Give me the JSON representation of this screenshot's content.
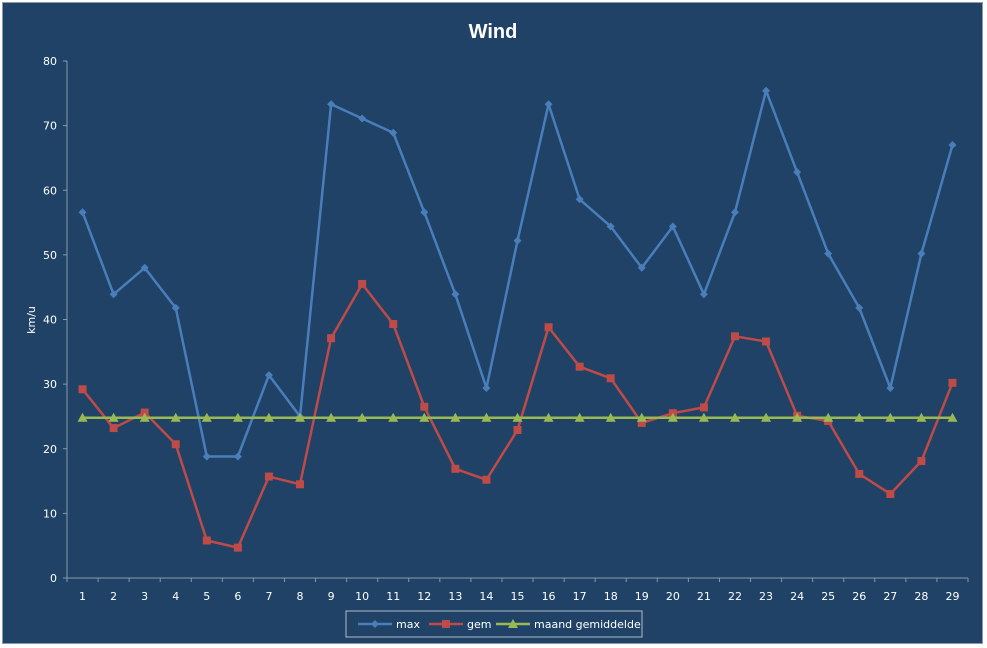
{
  "chart_data": {
    "type": "line",
    "title": "Wind",
    "xlabel": "",
    "ylabel": "km/u",
    "ylim": [
      0,
      80
    ],
    "yticks": [
      0,
      10,
      20,
      30,
      40,
      50,
      60,
      70,
      80
    ],
    "categories": [
      "1",
      "2",
      "3",
      "4",
      "5",
      "6",
      "7",
      "8",
      "9",
      "10",
      "11",
      "12",
      "13",
      "14",
      "15",
      "16",
      "17",
      "18",
      "19",
      "20",
      "21",
      "22",
      "23",
      "24",
      "25",
      "26",
      "27",
      "28",
      "29"
    ],
    "grid": false,
    "legend_position": "bottom",
    "series": [
      {
        "name": "max",
        "color": "#4a7ebb",
        "marker": "diamond",
        "values": [
          56.6,
          43.9,
          48.0,
          41.8,
          18.8,
          18.8,
          31.4,
          25.0,
          73.3,
          71.1,
          68.9,
          56.6,
          43.9,
          29.4,
          52.2,
          73.3,
          58.6,
          54.4,
          48.0,
          54.4,
          43.9,
          56.6,
          75.4,
          62.8,
          50.2,
          41.8,
          29.4,
          50.2,
          67.0
        ]
      },
      {
        "name": "gem",
        "color": "#be4b48",
        "marker": "square",
        "values": [
          29.2,
          23.2,
          25.6,
          20.7,
          5.8,
          4.7,
          15.7,
          14.5,
          37.1,
          45.5,
          39.3,
          26.5,
          16.9,
          15.2,
          22.9,
          38.8,
          32.7,
          30.9,
          24.0,
          25.5,
          26.4,
          37.4,
          36.6,
          25.1,
          24.3,
          16.1,
          13.0,
          18.1,
          30.2
        ]
      },
      {
        "name": "maand gemiddelde",
        "color": "#98b954",
        "marker": "triangle",
        "values": [
          24.8,
          24.8,
          24.8,
          24.8,
          24.8,
          24.8,
          24.8,
          24.8,
          24.8,
          24.8,
          24.8,
          24.8,
          24.8,
          24.8,
          24.8,
          24.8,
          24.8,
          24.8,
          24.8,
          24.8,
          24.8,
          24.8,
          24.8,
          24.8,
          24.8,
          24.8,
          24.8,
          24.8,
          24.8
        ]
      }
    ]
  }
}
